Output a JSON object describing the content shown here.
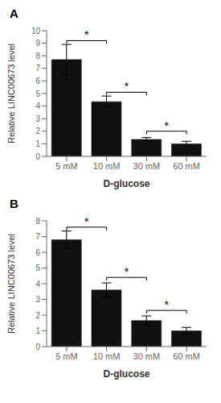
{
  "chart_data": [
    {
      "type": "bar",
      "title": "A",
      "categories": [
        "5 mM",
        "10 mM",
        "30 mM",
        "60 mM"
      ],
      "values": [
        7.7,
        4.35,
        1.35,
        1.0
      ],
      "errors": [
        1.2,
        0.45,
        0.15,
        0.2
      ],
      "ylim": [
        0,
        10
      ],
      "yticks": [
        0,
        1,
        2,
        3,
        4,
        5,
        6,
        7,
        8,
        9,
        10
      ],
      "y_label": "Relative LINC00673 level",
      "x_label": "D-glucose",
      "color": "#111111",
      "grid": false,
      "annotations": [
        {
          "text": "*",
          "x1": "5 mM",
          "x2": "10 mM",
          "y": 9.2
        },
        {
          "text": "*",
          "x1": "10 mM",
          "x2": "30 mM",
          "y": 5.1
        },
        {
          "text": "*",
          "x1": "30 mM",
          "x2": "60 mM",
          "y": 2.0
        }
      ]
    },
    {
      "type": "bar",
      "title": "B",
      "categories": [
        "5 mM",
        "10 mM",
        "30 mM",
        "60 mM"
      ],
      "values": [
        6.8,
        3.6,
        1.65,
        1.0
      ],
      "errors": [
        0.55,
        0.45,
        0.3,
        0.22
      ],
      "ylim": [
        0,
        8
      ],
      "yticks": [
        0,
        1,
        2,
        3,
        4,
        5,
        6,
        7,
        8
      ],
      "y_label": "Relative LINC00673 level",
      "x_label": "D-glucose",
      "color": "#111111",
      "grid": false,
      "annotations": [
        {
          "text": "*",
          "x1": "5 mM",
          "x2": "10 mM",
          "y": 7.6
        },
        {
          "text": "*",
          "x1": "10 mM",
          "x2": "30 mM",
          "y": 4.4
        },
        {
          "text": "*",
          "x1": "30 mM",
          "x2": "60 mM",
          "y": 2.3
        }
      ]
    }
  ]
}
